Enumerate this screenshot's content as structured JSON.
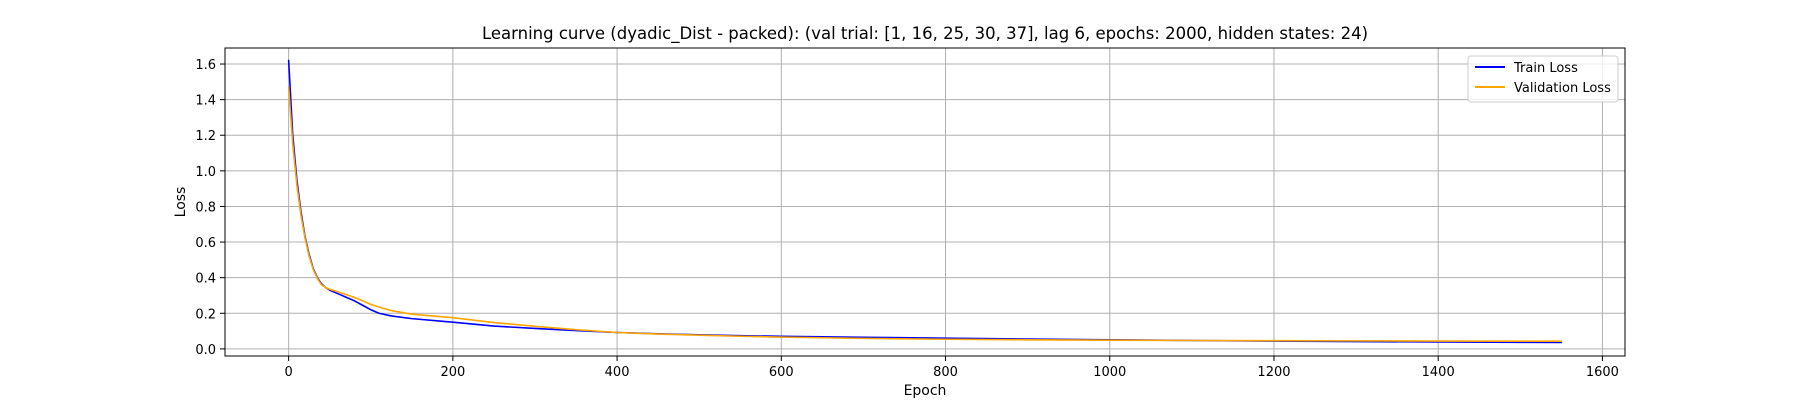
{
  "chart_data": {
    "type": "line",
    "title": "Learning curve (dyadic_Dist - packed): (val trial: [1, 16, 25, 30, 37], lag 6, epochs: 2000, hidden states: 24)",
    "xlabel": "Epoch",
    "ylabel": "Loss",
    "xlim": [
      -77.5,
      1627.5
    ],
    "ylim": [
      -0.04,
      1.69
    ],
    "x_ticks": [
      0,
      200,
      400,
      600,
      800,
      1000,
      1200,
      1400,
      1600
    ],
    "y_ticks": [
      0.0,
      0.2,
      0.4,
      0.6,
      0.8,
      1.0,
      1.2,
      1.4,
      1.6
    ],
    "x_tick_labels": [
      "0",
      "200",
      "400",
      "600",
      "800",
      "1000",
      "1200",
      "1400",
      "1600"
    ],
    "y_tick_labels": [
      "0.0",
      "0.2",
      "0.4",
      "0.6",
      "0.8",
      "1.0",
      "1.2",
      "1.4",
      "1.6"
    ],
    "grid": true,
    "legend_position": "top-right",
    "series": [
      {
        "name": "Train Loss",
        "color": "#0000ff",
        "points": [
          [
            0,
            1.62
          ],
          [
            5,
            1.2
          ],
          [
            10,
            0.95
          ],
          [
            15,
            0.77
          ],
          [
            20,
            0.63
          ],
          [
            25,
            0.53
          ],
          [
            30,
            0.45
          ],
          [
            35,
            0.4
          ],
          [
            40,
            0.365
          ],
          [
            45,
            0.345
          ],
          [
            50,
            0.33
          ],
          [
            60,
            0.31
          ],
          [
            70,
            0.29
          ],
          [
            80,
            0.27
          ],
          [
            90,
            0.245
          ],
          [
            100,
            0.22
          ],
          [
            110,
            0.2
          ],
          [
            125,
            0.185
          ],
          [
            150,
            0.17
          ],
          [
            200,
            0.15
          ],
          [
            250,
            0.128
          ],
          [
            300,
            0.115
          ],
          [
            350,
            0.103
          ],
          [
            400,
            0.092
          ],
          [
            450,
            0.085
          ],
          [
            500,
            0.079
          ],
          [
            550,
            0.074
          ],
          [
            600,
            0.071
          ],
          [
            700,
            0.065
          ],
          [
            800,
            0.06
          ],
          [
            900,
            0.055
          ],
          [
            1000,
            0.051
          ],
          [
            1100,
            0.047
          ],
          [
            1200,
            0.044
          ],
          [
            1300,
            0.041
          ],
          [
            1400,
            0.039
          ],
          [
            1500,
            0.037
          ],
          [
            1550,
            0.036
          ]
        ]
      },
      {
        "name": "Validation Loss",
        "color": "#ffa500",
        "points": [
          [
            0,
            1.47
          ],
          [
            5,
            1.15
          ],
          [
            10,
            0.92
          ],
          [
            15,
            0.75
          ],
          [
            20,
            0.62
          ],
          [
            25,
            0.52
          ],
          [
            30,
            0.445
          ],
          [
            35,
            0.395
          ],
          [
            40,
            0.36
          ],
          [
            45,
            0.345
          ],
          [
            50,
            0.335
          ],
          [
            60,
            0.32
          ],
          [
            70,
            0.305
          ],
          [
            80,
            0.29
          ],
          [
            90,
            0.27
          ],
          [
            100,
            0.25
          ],
          [
            110,
            0.235
          ],
          [
            125,
            0.215
          ],
          [
            150,
            0.195
          ],
          [
            200,
            0.175
          ],
          [
            250,
            0.148
          ],
          [
            300,
            0.127
          ],
          [
            350,
            0.108
          ],
          [
            400,
            0.092
          ],
          [
            450,
            0.083
          ],
          [
            500,
            0.077
          ],
          [
            550,
            0.071
          ],
          [
            600,
            0.066
          ],
          [
            700,
            0.059
          ],
          [
            800,
            0.054
          ],
          [
            900,
            0.051
          ],
          [
            1000,
            0.049
          ],
          [
            1100,
            0.047
          ],
          [
            1200,
            0.046
          ],
          [
            1300,
            0.045
          ],
          [
            1400,
            0.044
          ],
          [
            1500,
            0.043
          ],
          [
            1550,
            0.043
          ]
        ]
      }
    ]
  }
}
